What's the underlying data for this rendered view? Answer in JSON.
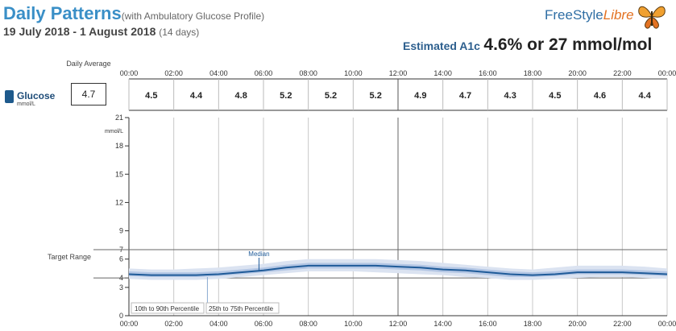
{
  "header": {
    "title": "Daily Patterns",
    "subtitle": "(with Ambulatory Glucose Profile)",
    "date_range": "19 July 2018 - 1 August 2018",
    "days": "(14 days)",
    "brand_main": "FreeStyle",
    "brand_accent": "Libre",
    "a1c_label": "Estimated A1c",
    "a1c_value": "4.6% or 27 mmol/mol"
  },
  "left_panel": {
    "daily_average_label": "Daily Average",
    "glucose_label": "Glucose",
    "glucose_unit": "mmol/L",
    "daily_average_value": "4.7",
    "target_range_label": "Target Range"
  },
  "colors": {
    "title": "#3a8fc7",
    "median": "#1f5b99",
    "band_25_75": "#b3c6e4",
    "band_10_90": "#dbe3f1",
    "target_line": "#666666"
  },
  "chart_data": {
    "type": "line",
    "x_ticks": [
      "00:00",
      "02:00",
      "04:00",
      "06:00",
      "08:00",
      "10:00",
      "12:00",
      "14:00",
      "16:00",
      "18:00",
      "20:00",
      "22:00",
      "00:00"
    ],
    "ylabel": "mmol/L",
    "y_ticks": [
      0,
      3,
      4,
      6,
      7,
      9,
      12,
      15,
      18,
      21
    ],
    "ylim": [
      0,
      21
    ],
    "target_range": [
      4,
      7
    ],
    "hourly_averages": [
      "4.5",
      "4.4",
      "4.8",
      "5.2",
      "5.2",
      "5.2",
      "4.9",
      "4.7",
      "4.3",
      "4.5",
      "4.6",
      "4.4"
    ],
    "x_hours": [
      0,
      1,
      2,
      3,
      4,
      5,
      6,
      7,
      8,
      9,
      10,
      11,
      12,
      13,
      14,
      15,
      16,
      17,
      18,
      19,
      20,
      21,
      22,
      23,
      24
    ],
    "series": [
      {
        "name": "Median",
        "values": [
          4.4,
          4.3,
          4.3,
          4.3,
          4.4,
          4.6,
          4.8,
          5.1,
          5.3,
          5.3,
          5.3,
          5.3,
          5.2,
          5.1,
          4.9,
          4.8,
          4.6,
          4.4,
          4.3,
          4.4,
          4.6,
          4.6,
          4.6,
          4.5,
          4.4
        ]
      },
      {
        "name": "25th to 75th Percentile",
        "values_low": [
          4.2,
          4.1,
          4.1,
          4.1,
          4.2,
          4.4,
          4.6,
          4.8,
          5.0,
          5.0,
          5.0,
          5.0,
          4.9,
          4.8,
          4.6,
          4.5,
          4.3,
          4.1,
          4.1,
          4.2,
          4.4,
          4.4,
          4.4,
          4.3,
          4.2
        ],
        "values_high": [
          4.7,
          4.6,
          4.6,
          4.6,
          4.7,
          4.9,
          5.1,
          5.4,
          5.6,
          5.6,
          5.6,
          5.6,
          5.5,
          5.4,
          5.2,
          5.1,
          4.9,
          4.7,
          4.6,
          4.7,
          4.9,
          4.9,
          4.9,
          4.8,
          4.7
        ]
      },
      {
        "name": "10th to 90th Percentile",
        "values_low": [
          3.9,
          3.8,
          3.8,
          3.8,
          3.9,
          4.1,
          4.3,
          4.5,
          4.7,
          4.7,
          4.7,
          4.6,
          4.5,
          4.4,
          4.3,
          4.1,
          4.0,
          3.8,
          3.8,
          3.9,
          4.0,
          4.1,
          4.1,
          4.0,
          3.9
        ],
        "values_high": [
          5.0,
          4.9,
          4.9,
          5.0,
          5.1,
          5.3,
          5.5,
          5.8,
          6.0,
          6.0,
          6.0,
          6.0,
          5.9,
          5.8,
          5.6,
          5.4,
          5.2,
          5.0,
          4.9,
          5.1,
          5.3,
          5.3,
          5.3,
          5.2,
          5.0
        ]
      }
    ],
    "annotations": [
      "Median",
      "10th to 90th Percentile",
      "25th to 75th Percentile"
    ]
  }
}
